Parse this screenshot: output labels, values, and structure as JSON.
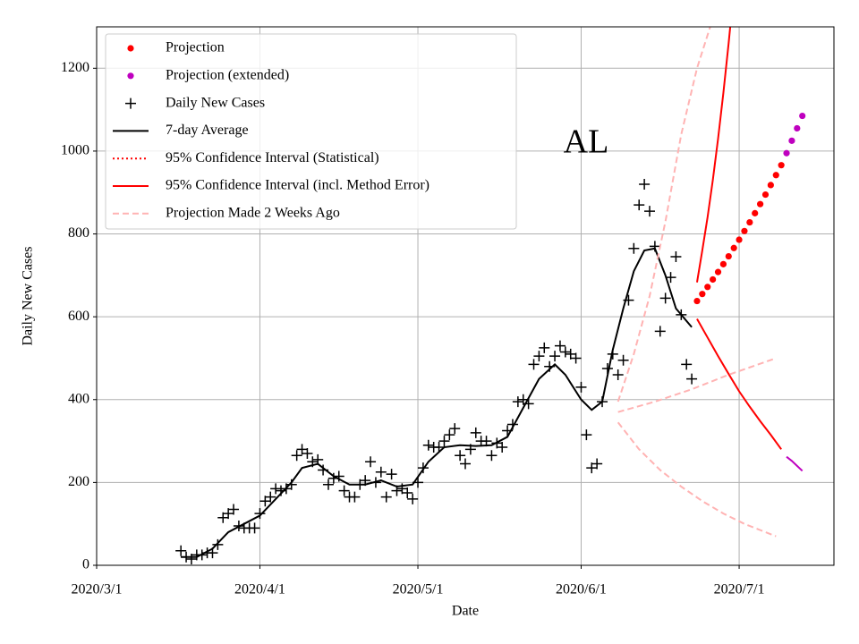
{
  "chart_data": {
    "type": "projection",
    "annotation": "AL",
    "xlabel": "Date",
    "ylabel": "Daily New Cases",
    "xlim": [
      "2020-03-01",
      "2020-07-19"
    ],
    "xticks": [
      {
        "value": "2020-03-01",
        "label": "2020/3/1"
      },
      {
        "value": "2020-04-01",
        "label": "2020/4/1"
      },
      {
        "value": "2020-05-01",
        "label": "2020/5/1"
      },
      {
        "value": "2020-06-01",
        "label": "2020/6/1"
      },
      {
        "value": "2020-07-01",
        "label": "2020/7/1"
      }
    ],
    "ylim": [
      0,
      1300
    ],
    "yticks": [
      0,
      200,
      400,
      600,
      800,
      1000,
      1200
    ],
    "grid": true,
    "legend": "upper left",
    "series": [
      {
        "name": "Projection",
        "color": "#ff0000",
        "marker": "dot",
        "x": [
          "2020-06-23",
          "2020-06-24",
          "2020-06-25",
          "2020-06-26",
          "2020-06-27",
          "2020-06-28",
          "2020-06-29",
          "2020-06-30",
          "2020-07-01",
          "2020-07-02",
          "2020-07-03",
          "2020-07-04",
          "2020-07-05",
          "2020-07-06",
          "2020-07-07",
          "2020-07-08",
          "2020-07-09"
        ],
        "values": [
          638,
          655,
          672,
          690,
          708,
          727,
          746,
          766,
          786,
          807,
          828,
          850,
          872,
          895,
          918,
          942,
          966
        ]
      },
      {
        "name": "Projection (extended)",
        "color": "#bf00bf",
        "marker": "dot",
        "x": [
          "2020-07-10",
          "2020-07-11",
          "2020-07-12",
          "2020-07-13"
        ],
        "values": [
          995,
          1025,
          1055,
          1085
        ]
      },
      {
        "name": "Daily New Cases",
        "color": "#000000",
        "marker": "plus",
        "x": [
          "2020-03-17",
          "2020-03-18",
          "2020-03-19",
          "2020-03-20",
          "2020-03-21",
          "2020-03-22",
          "2020-03-23",
          "2020-03-24",
          "2020-03-25",
          "2020-03-26",
          "2020-03-27",
          "2020-03-28",
          "2020-03-29",
          "2020-03-30",
          "2020-03-31",
          "2020-04-01",
          "2020-04-02",
          "2020-04-03",
          "2020-04-04",
          "2020-04-05",
          "2020-04-06",
          "2020-04-07",
          "2020-04-08",
          "2020-04-09",
          "2020-04-10",
          "2020-04-11",
          "2020-04-12",
          "2020-04-13",
          "2020-04-14",
          "2020-04-15",
          "2020-04-16",
          "2020-04-17",
          "2020-04-18",
          "2020-04-19",
          "2020-04-20",
          "2020-04-21",
          "2020-04-22",
          "2020-04-23",
          "2020-04-24",
          "2020-04-25",
          "2020-04-26",
          "2020-04-27",
          "2020-04-28",
          "2020-04-29",
          "2020-04-30",
          "2020-05-01",
          "2020-05-02",
          "2020-05-03",
          "2020-05-04",
          "2020-05-05",
          "2020-05-06",
          "2020-05-07",
          "2020-05-08",
          "2020-05-09",
          "2020-05-10",
          "2020-05-11",
          "2020-05-12",
          "2020-05-13",
          "2020-05-14",
          "2020-05-15",
          "2020-05-16",
          "2020-05-17",
          "2020-05-18",
          "2020-05-19",
          "2020-05-20",
          "2020-05-21",
          "2020-05-22",
          "2020-05-23",
          "2020-05-24",
          "2020-05-25",
          "2020-05-26",
          "2020-05-27",
          "2020-05-28",
          "2020-05-29",
          "2020-05-30",
          "2020-05-31",
          "2020-06-01",
          "2020-06-02",
          "2020-06-03",
          "2020-06-04",
          "2020-06-05",
          "2020-06-06",
          "2020-06-07",
          "2020-06-08",
          "2020-06-09",
          "2020-06-10",
          "2020-06-11",
          "2020-06-12",
          "2020-06-13",
          "2020-06-14",
          "2020-06-15",
          "2020-06-16",
          "2020-06-17",
          "2020-06-18",
          "2020-06-19",
          "2020-06-20",
          "2020-06-21",
          "2020-06-22"
        ],
        "values": [
          35,
          20,
          15,
          25,
          25,
          30,
          30,
          50,
          115,
          125,
          135,
          95,
          90,
          90,
          90,
          125,
          155,
          165,
          185,
          180,
          185,
          195,
          265,
          280,
          270,
          250,
          255,
          230,
          195,
          210,
          215,
          180,
          165,
          165,
          195,
          205,
          250,
          200,
          225,
          165,
          220,
          180,
          185,
          175,
          160,
          200,
          235,
          290,
          285,
          285,
          300,
          315,
          330,
          265,
          245,
          280,
          320,
          300,
          300,
          265,
          295,
          285,
          325,
          340,
          395,
          400,
          390,
          485,
          505,
          525,
          480,
          505,
          530,
          515,
          510,
          500,
          430,
          315,
          235,
          245,
          395,
          475,
          510,
          460,
          495,
          640,
          765,
          870,
          920,
          855,
          770,
          565,
          645,
          695,
          745,
          605,
          485,
          450
        ]
      },
      {
        "name": "7-day Average",
        "color": "#000000",
        "linestyle": "solid",
        "lines": [
          {
            "x": [
              "2020-03-17",
              "2020-03-20",
              "2020-03-23",
              "2020-03-26",
              "2020-03-29",
              "2020-04-01",
              "2020-04-04",
              "2020-04-07",
              "2020-04-09",
              "2020-04-12",
              "2020-04-15",
              "2020-04-18",
              "2020-04-21",
              "2020-04-24",
              "2020-04-27",
              "2020-04-30",
              "2020-05-03",
              "2020-05-06",
              "2020-05-09",
              "2020-05-12",
              "2020-05-15",
              "2020-05-18",
              "2020-05-21",
              "2020-05-24",
              "2020-05-27",
              "2020-05-29",
              "2020-06-01",
              "2020-06-03",
              "2020-06-05",
              "2020-06-07",
              "2020-06-09",
              "2020-06-11",
              "2020-06-13",
              "2020-06-15",
              "2020-06-17",
              "2020-06-19",
              "2020-06-22"
            ],
            "values": [
              20,
              20,
              40,
              80,
              100,
              120,
              160,
              200,
              235,
              245,
              215,
              195,
              195,
              205,
              190,
              195,
              250,
              285,
              290,
              288,
              290,
              310,
              380,
              450,
              485,
              460,
              400,
              375,
              395,
              520,
              620,
              710,
              760,
              765,
              700,
              620,
              575
            ]
          }
        ]
      },
      {
        "name": "95% Confidence Interval (Statistical)",
        "color": "#ff0000",
        "linestyle": "dotted",
        "lines": []
      },
      {
        "name": "95% Confidence Interval (incl. Method Error)",
        "color": "#ff0000",
        "linestyle": "solid",
        "lines": [
          {
            "x": [
              "2020-06-23",
              "2020-06-24",
              "2020-06-25",
              "2020-06-26",
              "2020-06-27",
              "2020-06-28",
              "2020-06-29",
              "2020-06-30"
            ],
            "values": [
              683,
              760,
              840,
              930,
              1030,
              1140,
              1260,
              1390
            ]
          },
          {
            "x": [
              "2020-06-23",
              "2020-06-25",
              "2020-06-27",
              "2020-06-29",
              "2020-07-01",
              "2020-07-03",
              "2020-07-05",
              "2020-07-07",
              "2020-07-09"
            ],
            "values": [
              595,
              550,
              505,
              462,
              420,
              383,
              348,
              315,
              280
            ]
          },
          {
            "color": "#bf00bf",
            "x": [
              "2020-07-10",
              "2020-07-11",
              "2020-07-12",
              "2020-07-13"
            ],
            "values": [
              262,
              252,
              240,
              228
            ]
          }
        ]
      },
      {
        "name": "Projection Made 2 Weeks Ago",
        "color": "#ffb3b3",
        "linestyle": "dashed",
        "lines": [
          {
            "x": [
              "2020-06-08",
              "2020-06-11",
              "2020-06-14",
              "2020-06-17",
              "2020-06-20",
              "2020-06-23",
              "2020-06-26"
            ],
            "values": [
              395,
              510,
              650,
              830,
              1040,
              1200,
              1320
            ]
          },
          {
            "x": [
              "2020-06-08",
              "2020-06-15",
              "2020-06-22",
              "2020-06-29",
              "2020-07-08"
            ],
            "values": [
              370,
              395,
              425,
              460,
              500
            ]
          },
          {
            "x": [
              "2020-06-08",
              "2020-06-12",
              "2020-06-16",
              "2020-06-20",
              "2020-06-24",
              "2020-06-28",
              "2020-07-02",
              "2020-07-08"
            ],
            "values": [
              345,
              280,
              230,
              190,
              155,
              125,
              100,
              70
            ]
          }
        ]
      }
    ]
  }
}
